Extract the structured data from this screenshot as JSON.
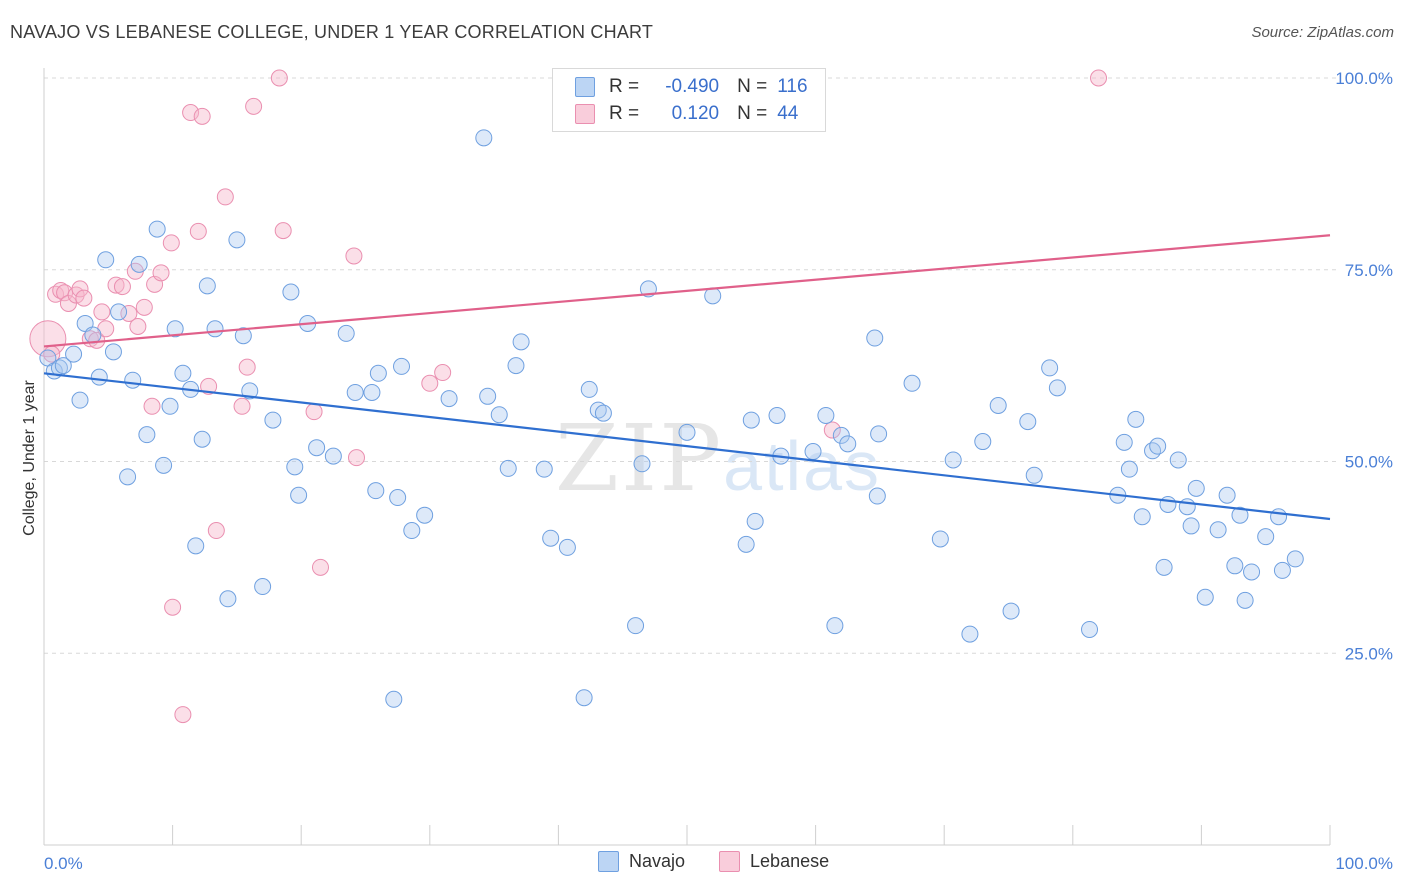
{
  "header": {
    "title": "NAVAJO VS LEBANESE COLLEGE, UNDER 1 YEAR CORRELATION CHART",
    "source": "Source: ZipAtlas.com"
  },
  "legend": {
    "rows": [
      {
        "r_label": "R =",
        "r_value": "-0.490",
        "n_label": "N =",
        "n_value": "116"
      },
      {
        "r_label": "R =",
        "r_value": "0.120",
        "n_label": "N =",
        "n_value": "44"
      }
    ]
  },
  "bottom_legend": [
    "Navajo",
    "Lebanese"
  ],
  "watermark": {
    "zip": "ZIP",
    "atlas": "atlas"
  },
  "colors": {
    "navajo_fill": "#a9c8f0",
    "navajo_stroke": "#6fa0e0",
    "navajo_line": "#2f6fd0",
    "lebanese_fill": "#f6b8cc",
    "lebanese_stroke": "#ea8fb0",
    "lebanese_line": "#e0608a",
    "tick_text": "#4a7fd6",
    "grid": "#d8d8d8"
  },
  "chart_data": {
    "type": "scatter",
    "title": "NAVAJO VS LEBANESE COLLEGE, UNDER 1 YEAR CORRELATION CHART",
    "xlabel": "",
    "ylabel": "College, Under 1 year",
    "xlim": [
      0,
      100
    ],
    "ylim": [
      0,
      103
    ],
    "x_tick_labels": [
      "0.0%",
      "100.0%"
    ],
    "y_ticks": [
      25,
      50,
      75,
      100
    ],
    "y_tick_labels": [
      "25.0%",
      "50.0%",
      "75.0%",
      "100.0%"
    ],
    "grid": "horizontal dashed",
    "legend_position": "top-center",
    "series": [
      {
        "name": "Navajo",
        "r": -0.49,
        "n": 116,
        "trend": {
          "x": [
            0,
            100
          ],
          "y": [
            61.5,
            42.5
          ]
        },
        "points": [
          [
            0.3,
            63.5
          ],
          [
            0.8,
            61.8
          ],
          [
            1.2,
            62.2
          ],
          [
            1.5,
            62.5
          ],
          [
            2.3,
            64.0
          ],
          [
            2.8,
            58.0
          ],
          [
            3.2,
            68.0
          ],
          [
            3.8,
            66.5
          ],
          [
            4.3,
            61.0
          ],
          [
            4.8,
            76.3
          ],
          [
            5.4,
            64.3
          ],
          [
            5.8,
            69.5
          ],
          [
            6.5,
            48.0
          ],
          [
            6.9,
            60.6
          ],
          [
            7.4,
            75.7
          ],
          [
            8.0,
            53.5
          ],
          [
            8.8,
            80.3
          ],
          [
            9.3,
            49.5
          ],
          [
            9.8,
            57.2
          ],
          [
            10.2,
            67.3
          ],
          [
            10.8,
            61.5
          ],
          [
            11.4,
            59.4
          ],
          [
            11.8,
            39.0
          ],
          [
            12.3,
            52.9
          ],
          [
            12.7,
            72.9
          ],
          [
            13.3,
            67.3
          ],
          [
            14.3,
            32.1
          ],
          [
            15.0,
            78.9
          ],
          [
            15.5,
            66.4
          ],
          [
            16.0,
            59.2
          ],
          [
            17.0,
            33.7
          ],
          [
            17.8,
            55.4
          ],
          [
            19.2,
            72.1
          ],
          [
            19.5,
            49.3
          ],
          [
            19.8,
            45.6
          ],
          [
            20.5,
            68.0
          ],
          [
            21.2,
            51.8
          ],
          [
            22.5,
            50.7
          ],
          [
            23.5,
            66.7
          ],
          [
            24.2,
            59.0
          ],
          [
            25.5,
            59.0
          ],
          [
            25.8,
            46.2
          ],
          [
            26.0,
            61.5
          ],
          [
            27.2,
            19.0
          ],
          [
            27.5,
            45.3
          ],
          [
            27.8,
            62.4
          ],
          [
            28.6,
            41.0
          ],
          [
            29.6,
            43.0
          ],
          [
            31.5,
            58.2
          ],
          [
            34.2,
            92.2
          ],
          [
            34.5,
            58.5
          ],
          [
            35.4,
            56.1
          ],
          [
            36.1,
            49.1
          ],
          [
            36.7,
            62.5
          ],
          [
            37.1,
            65.6
          ],
          [
            38.9,
            49.0
          ],
          [
            39.4,
            40.0
          ],
          [
            40.7,
            38.8
          ],
          [
            42.0,
            19.2
          ],
          [
            42.4,
            59.4
          ],
          [
            43.1,
            56.7
          ],
          [
            43.5,
            56.3
          ],
          [
            46.0,
            28.6
          ],
          [
            46.5,
            49.7
          ],
          [
            47.0,
            72.5
          ],
          [
            50.0,
            53.8
          ],
          [
            52.0,
            71.6
          ],
          [
            54.6,
            39.2
          ],
          [
            55.0,
            55.4
          ],
          [
            55.3,
            42.2
          ],
          [
            57.0,
            56.0
          ],
          [
            57.3,
            50.7
          ],
          [
            59.8,
            51.3
          ],
          [
            60.8,
            56.0
          ],
          [
            61.5,
            28.6
          ],
          [
            62.0,
            53.4
          ],
          [
            62.5,
            52.3
          ],
          [
            64.6,
            66.1
          ],
          [
            64.8,
            45.5
          ],
          [
            64.9,
            53.6
          ],
          [
            67.5,
            60.2
          ],
          [
            69.7,
            39.9
          ],
          [
            70.7,
            50.2
          ],
          [
            72.0,
            27.5
          ],
          [
            73.0,
            52.6
          ],
          [
            74.2,
            57.3
          ],
          [
            75.2,
            30.5
          ],
          [
            76.5,
            55.2
          ],
          [
            77.0,
            48.2
          ],
          [
            78.2,
            62.2
          ],
          [
            78.8,
            59.6
          ],
          [
            81.3,
            28.1
          ],
          [
            83.5,
            45.6
          ],
          [
            84.0,
            52.5
          ],
          [
            84.4,
            49.0
          ],
          [
            84.9,
            55.5
          ],
          [
            85.4,
            42.8
          ],
          [
            86.2,
            51.4
          ],
          [
            86.6,
            52.0
          ],
          [
            87.1,
            36.2
          ],
          [
            87.4,
            44.4
          ],
          [
            88.2,
            50.2
          ],
          [
            88.9,
            44.1
          ],
          [
            89.2,
            41.6
          ],
          [
            89.6,
            46.5
          ],
          [
            90.3,
            32.3
          ],
          [
            91.3,
            41.1
          ],
          [
            92.0,
            45.6
          ],
          [
            92.6,
            36.4
          ],
          [
            93.0,
            43.0
          ],
          [
            93.4,
            31.9
          ],
          [
            93.9,
            35.6
          ],
          [
            95.0,
            40.2
          ],
          [
            96.0,
            42.8
          ],
          [
            96.3,
            35.8
          ],
          [
            97.3,
            37.3
          ]
        ]
      },
      {
        "name": "Lebanese",
        "r": 0.12,
        "n": 44,
        "trend": {
          "x": [
            0,
            100
          ],
          "y": [
            65.0,
            79.5
          ]
        },
        "points": [
          [
            0.3,
            66.0
          ],
          [
            0.6,
            64.0
          ],
          [
            0.9,
            71.8
          ],
          [
            1.3,
            72.3
          ],
          [
            1.6,
            72.0
          ],
          [
            1.9,
            70.6
          ],
          [
            2.5,
            71.7
          ],
          [
            2.8,
            72.5
          ],
          [
            3.1,
            71.3
          ],
          [
            3.6,
            66.0
          ],
          [
            4.1,
            65.8
          ],
          [
            4.5,
            69.5
          ],
          [
            4.8,
            67.3
          ],
          [
            5.6,
            73.0
          ],
          [
            6.1,
            72.8
          ],
          [
            6.6,
            69.3
          ],
          [
            7.1,
            74.8
          ],
          [
            7.3,
            67.6
          ],
          [
            7.8,
            70.1
          ],
          [
            8.4,
            57.2
          ],
          [
            8.6,
            73.1
          ],
          [
            9.1,
            74.6
          ],
          [
            9.9,
            78.5
          ],
          [
            10.0,
            31.0
          ],
          [
            10.8,
            17.0
          ],
          [
            11.4,
            95.5
          ],
          [
            12.0,
            80.0
          ],
          [
            12.3,
            95.0
          ],
          [
            12.8,
            59.8
          ],
          [
            13.4,
            41.0
          ],
          [
            14.1,
            84.5
          ],
          [
            15.4,
            57.2
          ],
          [
            15.8,
            62.3
          ],
          [
            16.3,
            96.3
          ],
          [
            18.3,
            100.0
          ],
          [
            18.6,
            80.1
          ],
          [
            21.0,
            56.5
          ],
          [
            21.5,
            36.2
          ],
          [
            24.1,
            76.8
          ],
          [
            24.3,
            50.5
          ],
          [
            30.0,
            60.2
          ],
          [
            31.0,
            61.6
          ],
          [
            61.3,
            54.1
          ],
          [
            82.0,
            100.0
          ]
        ]
      }
    ]
  }
}
